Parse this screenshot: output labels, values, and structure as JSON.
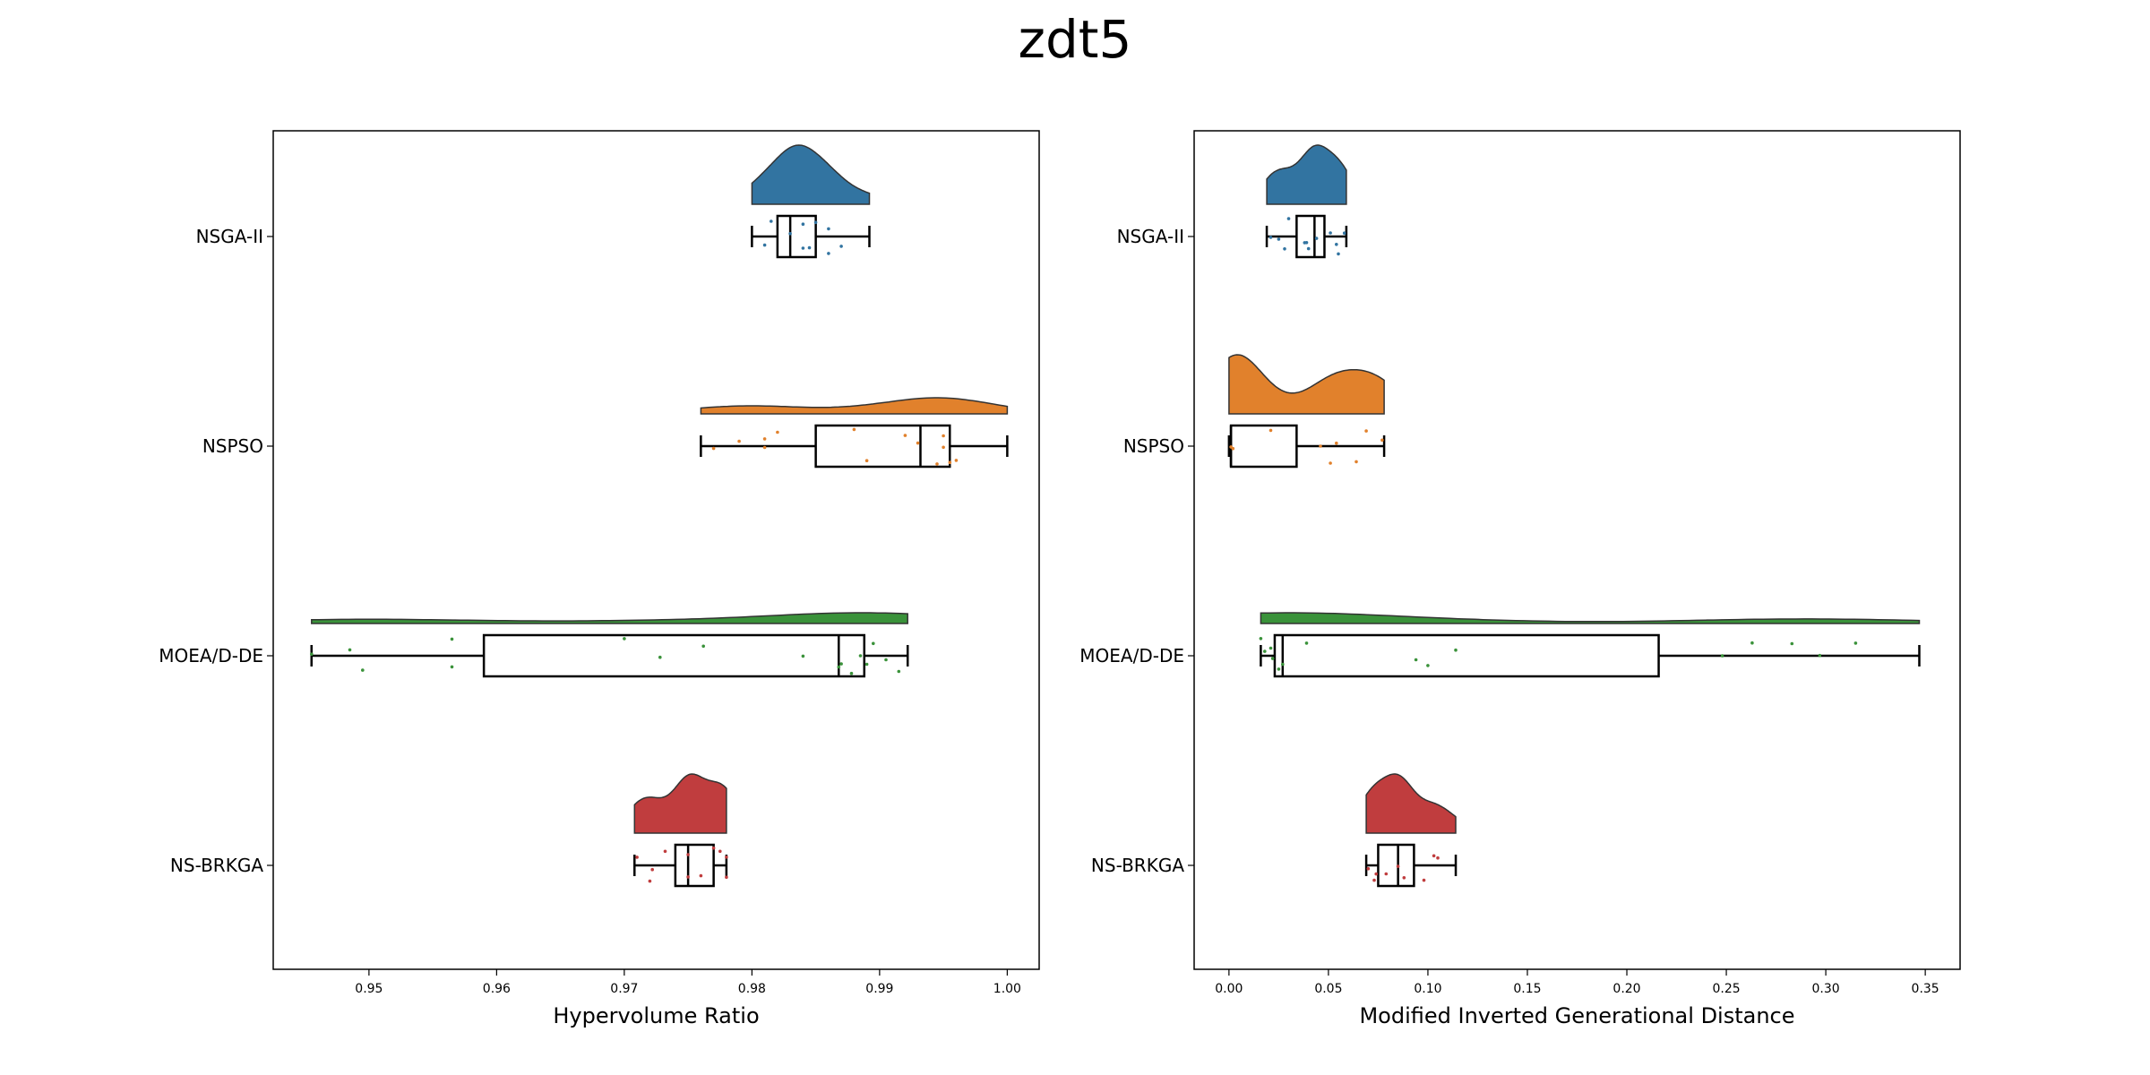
{
  "figure": {
    "title": "zdt5"
  },
  "chart_data": [
    {
      "type": "raincloud",
      "xlabel": "Hypervolume Ratio",
      "ylabel": "",
      "xlim": [
        0.9425,
        1.0025
      ],
      "xticks": [
        "0.95",
        "0.96",
        "0.97",
        "0.98",
        "0.99",
        "1.00"
      ],
      "xtick_values": [
        0.95,
        0.96,
        0.97,
        0.98,
        0.99,
        1.0
      ],
      "categories": [
        "NSGA-II",
        "NSPSO",
        "MOEA/D-DE",
        "NS-BRKGA"
      ],
      "colors": [
        "#3274a1",
        "#e1812c",
        "#3a923a",
        "#c03d3e"
      ],
      "boxes": [
        {
          "min": 0.98,
          "q1": 0.982,
          "median": 0.983,
          "q3": 0.985,
          "max": 0.9892
        },
        {
          "min": 0.976,
          "q1": 0.985,
          "median": 0.9932,
          "q3": 0.9955,
          "max": 1.0
        },
        {
          "min": 0.9455,
          "q1": 0.959,
          "median": 0.9868,
          "q3": 0.9888,
          "max": 0.9922
        },
        {
          "min": 0.9708,
          "q1": 0.974,
          "median": 0.975,
          "q3": 0.977,
          "max": 0.978
        }
      ],
      "density_peak": [
        0.983,
        0.995,
        0.99,
        0.975
      ],
      "points": [
        [
          0.981,
          0.9815,
          0.983,
          0.984,
          0.984,
          0.9845,
          0.985,
          0.986,
          0.986,
          0.987
        ],
        [
          0.977,
          0.979,
          0.981,
          0.981,
          0.982,
          0.988,
          0.989,
          0.992,
          0.993,
          0.9945,
          0.995,
          0.995,
          0.9955,
          0.996
        ],
        [
          0.9455,
          0.9485,
          0.9495,
          0.9565,
          0.9565,
          0.97,
          0.9728,
          0.9762,
          0.984,
          0.9868,
          0.987,
          0.9878,
          0.9885,
          0.989,
          0.9895,
          0.9905,
          0.9915
        ],
        [
          0.971,
          0.972,
          0.9722,
          0.9732,
          0.975,
          0.975,
          0.976,
          0.977,
          0.9775,
          0.978,
          0.978
        ]
      ]
    },
    {
      "type": "raincloud",
      "xlabel": "Modified Inverted Generational Distance",
      "ylabel": "",
      "xlim": [
        -0.0175,
        0.3675
      ],
      "xticks": [
        "0.00",
        "0.05",
        "0.10",
        "0.15",
        "0.20",
        "0.25",
        "0.30",
        "0.35"
      ],
      "xtick_values": [
        0.0,
        0.05,
        0.1,
        0.15,
        0.2,
        0.25,
        0.3,
        0.35
      ],
      "categories": [
        "NSGA-II",
        "NSPSO",
        "MOEA/D-DE",
        "NS-BRKGA"
      ],
      "colors": [
        "#3274a1",
        "#e1812c",
        "#3a923a",
        "#c03d3e"
      ],
      "boxes": [
        {
          "min": 0.019,
          "q1": 0.034,
          "median": 0.043,
          "q3": 0.048,
          "max": 0.059
        },
        {
          "min": 0.0,
          "q1": 0.001,
          "median": 0.001,
          "q3": 0.034,
          "max": 0.078
        },
        {
          "min": 0.016,
          "q1": 0.023,
          "median": 0.027,
          "q3": 0.216,
          "max": 0.347
        },
        {
          "min": 0.069,
          "q1": 0.075,
          "median": 0.085,
          "q3": 0.093,
          "max": 0.114
        }
      ],
      "density_peak": [
        0.045,
        0.005,
        0.02,
        0.086
      ],
      "points": [
        [
          0.021,
          0.025,
          0.028,
          0.03,
          0.038,
          0.039,
          0.04,
          0.044,
          0.051,
          0.054,
          0.055,
          0.058
        ],
        [
          0.001,
          0.002,
          0.021,
          0.046,
          0.051,
          0.054,
          0.064,
          0.069,
          0.077
        ],
        [
          0.016,
          0.018,
          0.021,
          0.022,
          0.025,
          0.027,
          0.039,
          0.094,
          0.1,
          0.114,
          0.248,
          0.263,
          0.283,
          0.297,
          0.315
        ],
        [
          0.07,
          0.073,
          0.074,
          0.079,
          0.085,
          0.088,
          0.098,
          0.103,
          0.105
        ]
      ]
    }
  ]
}
